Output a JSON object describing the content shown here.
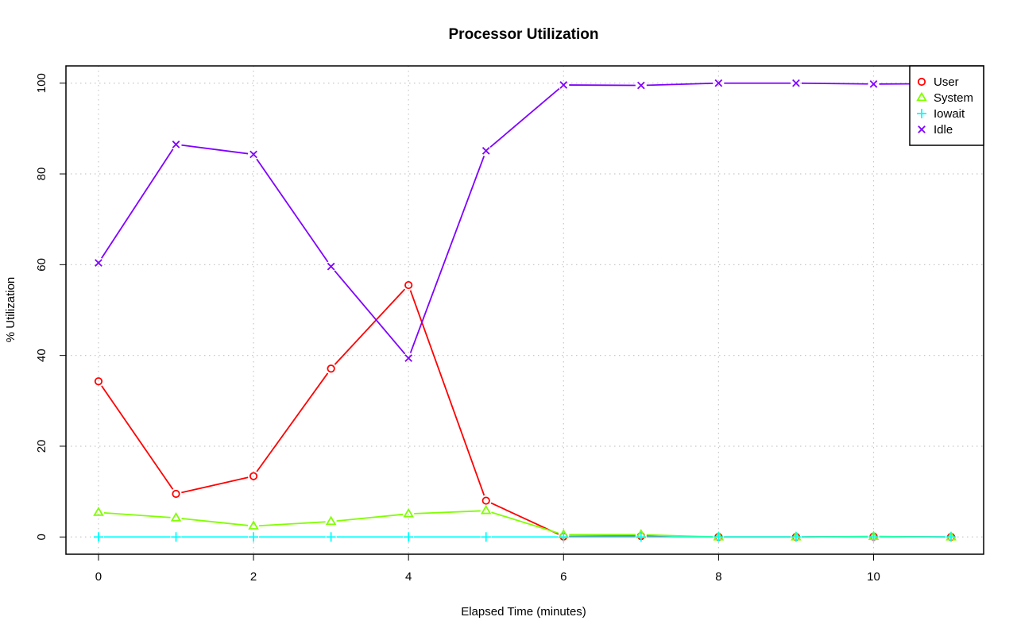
{
  "chart_data": {
    "type": "line",
    "title": "Processor Utilization",
    "xlabel": "Elapsed Time (minutes)",
    "ylabel": "% Utilization",
    "xlim": [
      -0.42,
      11.42
    ],
    "ylim": [
      -3.8,
      103.8
    ],
    "x_ticks": [
      0,
      2,
      4,
      6,
      8,
      10
    ],
    "y_ticks": [
      0,
      20,
      40,
      60,
      80,
      100
    ],
    "grid": true,
    "legend_position": "top-right",
    "x": [
      0,
      1,
      2,
      3,
      4,
      5,
      6,
      7,
      8,
      9,
      10,
      11
    ],
    "series": [
      {
        "name": "User",
        "color": "#ff0000",
        "marker": "circle",
        "values": [
          34.3,
          9.5,
          13.4,
          37.1,
          55.5,
          8.0,
          0.1,
          0.2,
          0.0,
          0.0,
          0.1,
          0.0
        ]
      },
      {
        "name": "System",
        "color": "#80ff00",
        "marker": "triangle",
        "values": [
          5.4,
          4.2,
          2.4,
          3.4,
          5.1,
          5.8,
          0.5,
          0.5,
          0.0,
          0.0,
          0.1,
          0.0
        ]
      },
      {
        "name": "Iowait",
        "color": "#00ffff",
        "marker": "plus",
        "values": [
          0.0,
          0.0,
          0.0,
          0.0,
          0.0,
          0.0,
          0.0,
          0.0,
          0.0,
          0.0,
          0.0,
          0.0
        ]
      },
      {
        "name": "Idle",
        "color": "#8000ff",
        "marker": "cross",
        "values": [
          60.4,
          86.5,
          84.3,
          59.6,
          39.4,
          85.1,
          99.6,
          99.5,
          100.0,
          100.0,
          99.8,
          99.9
        ]
      }
    ]
  }
}
